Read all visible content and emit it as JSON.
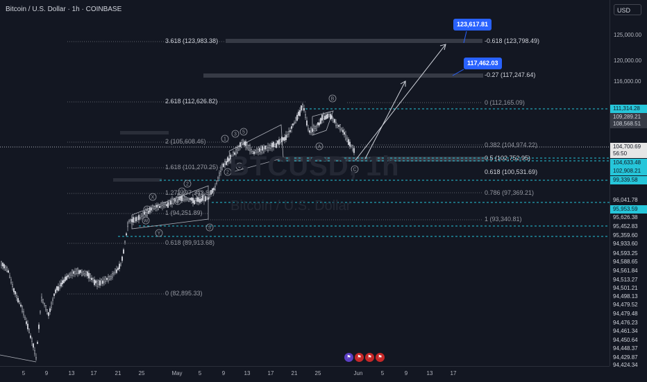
{
  "header": {
    "title": "Bitcoin / U.S. Dollar · 1h · COINBASE"
  },
  "watermark": {
    "symbol": "BTCUSD, 1h",
    "name": "Bitcoin / U.S. Dollar"
  },
  "price_axis": {
    "currency": "USD",
    "ticks": [
      "125,000.00",
      "120,000.00",
      "116,000.00"
    ],
    "labels": [
      {
        "text": "111,314.28",
        "style": "cyan"
      },
      {
        "text": "109,289.21",
        "style": "gray"
      },
      {
        "text": "108,568.51",
        "style": "gray"
      },
      {
        "text": "104,700.69",
        "style": "white"
      },
      {
        "text": "56:50",
        "style": "white"
      },
      {
        "text": "104,633.48",
        "style": "cyan"
      },
      {
        "text": "102,908.21",
        "style": "cyan"
      },
      {
        "text": "99,339.58",
        "style": "cyan"
      },
      {
        "text": "96,041.78",
        "style": "plain"
      },
      {
        "text": "95,953.59",
        "style": "cyan"
      },
      {
        "text": "95,626.38",
        "style": "plain"
      },
      {
        "text": "95,452.83",
        "style": "plain"
      },
      {
        "text": "95,359.60",
        "style": "plain"
      },
      {
        "text": "94,933.60",
        "style": "plain"
      },
      {
        "text": "94,593.25",
        "style": "plain"
      },
      {
        "text": "94,588.65",
        "style": "plain"
      },
      {
        "text": "94,561.84",
        "style": "plain"
      },
      {
        "text": "94,513.27",
        "style": "plain"
      },
      {
        "text": "94,501.21",
        "style": "plain"
      },
      {
        "text": "94,498.13",
        "style": "plain"
      },
      {
        "text": "94,479.52",
        "style": "plain"
      },
      {
        "text": "94,479.48",
        "style": "plain"
      },
      {
        "text": "94,476.23",
        "style": "plain"
      },
      {
        "text": "94,461.34",
        "style": "plain"
      },
      {
        "text": "94,450.64",
        "style": "plain"
      },
      {
        "text": "94,448.37",
        "style": "plain"
      },
      {
        "text": "94,429.87",
        "style": "plain"
      },
      {
        "text": "94,424.34",
        "style": "plain"
      }
    ]
  },
  "time_axis": [
    "5",
    "9",
    "13",
    "17",
    "21",
    "25",
    "May",
    "5",
    "9",
    "13",
    "17",
    "21",
    "25",
    "Jun",
    "5",
    "9",
    "13",
    "17"
  ],
  "callouts": [
    "123,617.81",
    "117,462.03"
  ],
  "fib_left": [
    {
      "text": "3.618 (123,983.38)",
      "style": "bold"
    },
    {
      "text": "2.618 (112,626.82)",
      "style": "bold"
    },
    {
      "text": "2 (105,608.46)",
      "style": "dim"
    },
    {
      "text": "1.618 (101,270.25)",
      "style": "dim"
    },
    {
      "text": "1.272 (97,342.88)",
      "style": "dim"
    },
    {
      "text": "1 (94,251.89)",
      "style": "dim"
    },
    {
      "text": "0.618 (89,913.68)",
      "style": "dim"
    },
    {
      "text": "0 (82,895.33)",
      "style": "dim"
    }
  ],
  "fib_right": [
    {
      "text": "-0.618 (123,798.49)",
      "style": "bold"
    },
    {
      "text": "-0.27 (117,247.64)",
      "style": "bold"
    },
    {
      "text": "0 (112,165.09)",
      "style": "dim"
    },
    {
      "text": "0.382 (104,974.22)",
      "style": "dim"
    },
    {
      "text": "0.5 (102,752.95)",
      "style": "bold"
    },
    {
      "text": "0.618 (100,531.69)",
      "style": "bold"
    },
    {
      "text": "0.786 (97,369.21)",
      "style": "dim"
    },
    {
      "text": "1 (93,340.81)",
      "style": "dim"
    }
  ],
  "wave_labels": [
    "X",
    "W",
    "Y",
    "1",
    "2",
    "3",
    "4",
    "5",
    "A",
    "B",
    "C"
  ],
  "colors": {
    "background": "#131722",
    "cyan": "#26c6da",
    "blue": "#2962ff",
    "candle": "#d1d4dc",
    "grid_line": "#787b86"
  }
}
